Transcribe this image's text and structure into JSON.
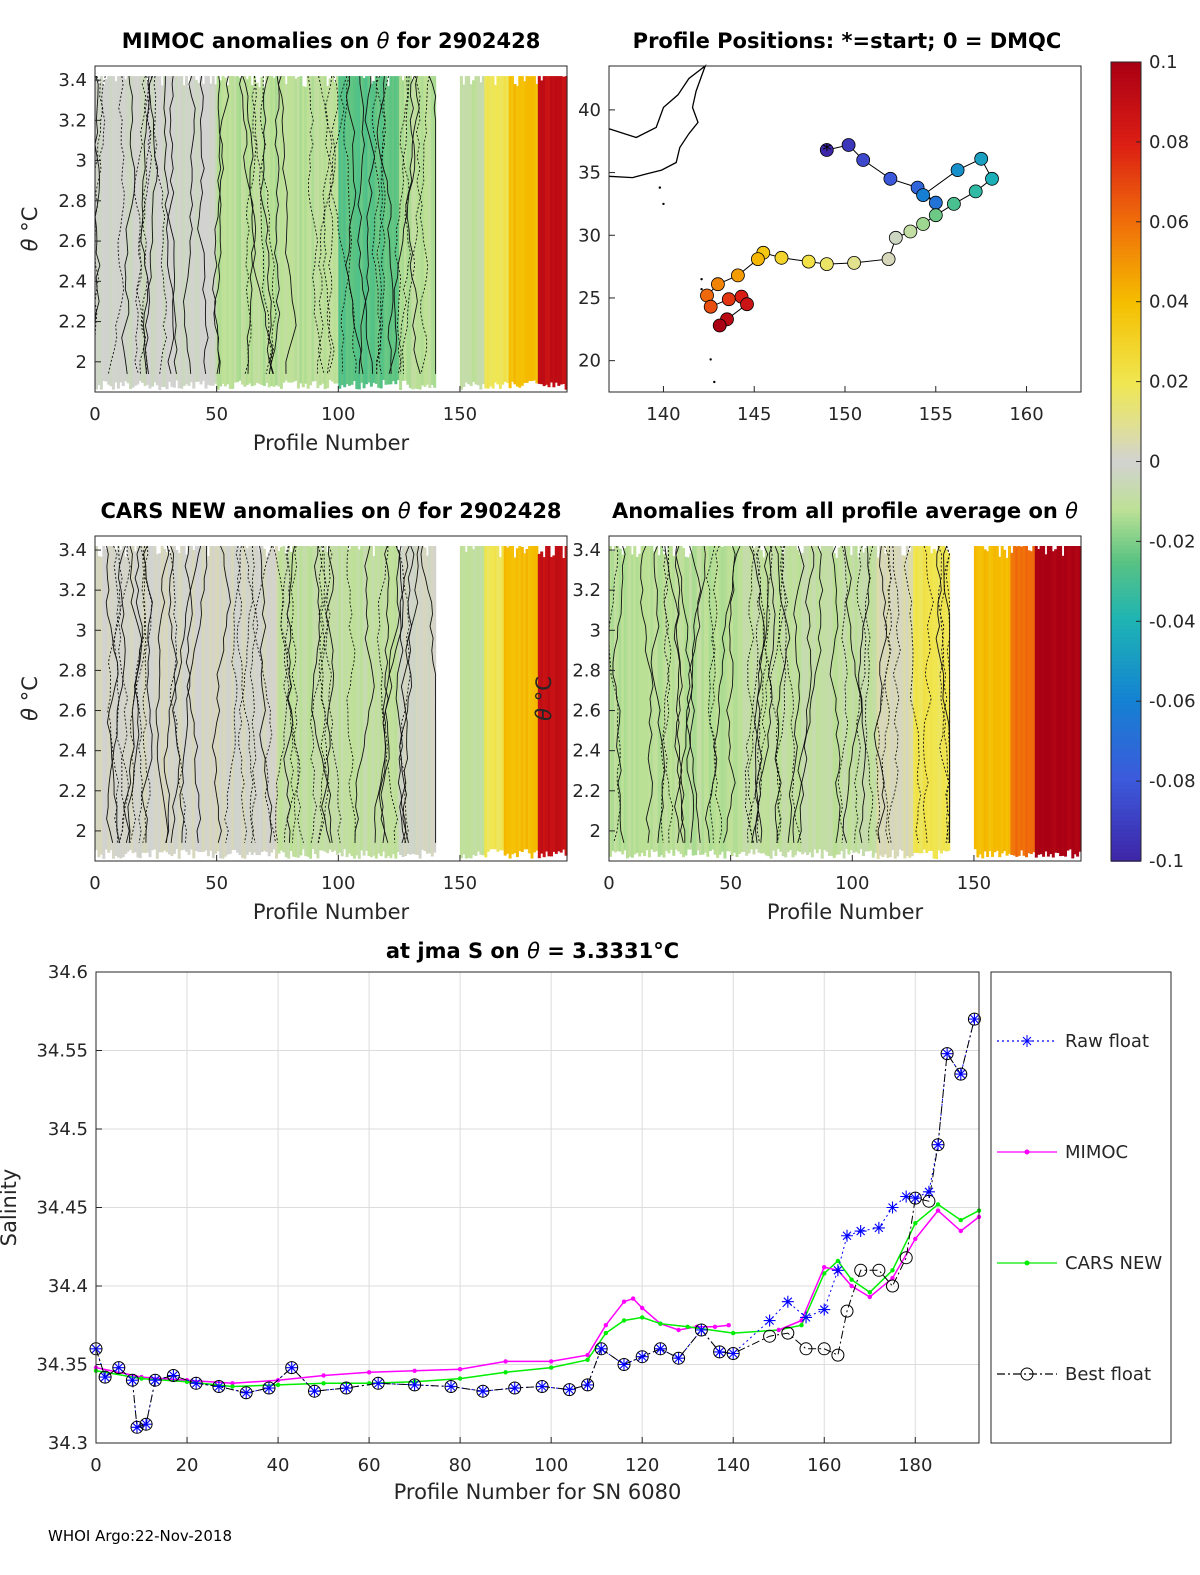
{
  "footer": "WHOI Argo:22-Nov-2018",
  "chart_data": [
    {
      "id": "mimoc",
      "type": "heatmap",
      "title_prefix": "MIMOC anomalies on",
      "title_symbol": "θ",
      "title_suffix": " for 2902428",
      "xlabel": "Profile Number",
      "ylabel_symbol": "θ",
      "ylabel_unit": "°C",
      "xlim": [
        0,
        194
      ],
      "ylim": [
        1.85,
        3.47
      ],
      "xticks": [
        "0",
        "50",
        "100",
        "150"
      ],
      "yticks": [
        "2",
        "2.2",
        "2.4",
        "2.6",
        "2.8",
        "3",
        "3.2",
        "3.4"
      ],
      "anomaly_by_profile_range": [
        {
          "from": 0,
          "to": 50,
          "anomaly": -0.002
        },
        {
          "from": 50,
          "to": 100,
          "anomaly": -0.012
        },
        {
          "from": 100,
          "to": 125,
          "anomaly": -0.025
        },
        {
          "from": 125,
          "to": 140,
          "anomaly": -0.012
        },
        {
          "from": 150,
          "to": 160,
          "anomaly": -0.01
        },
        {
          "from": 160,
          "to": 170,
          "anomaly": 0.02
        },
        {
          "from": 170,
          "to": 182,
          "anomaly": 0.04
        },
        {
          "from": 182,
          "to": 194,
          "anomaly": 0.09
        }
      ]
    },
    {
      "id": "map",
      "type": "scatter",
      "title": "Profile Positions: *=start; 0 = DMQC",
      "xlim": [
        137,
        163
      ],
      "ylim": [
        17.5,
        43.5
      ],
      "xticks": [
        "140",
        "145",
        "150",
        "155",
        "160"
      ],
      "yticks": [
        "20",
        "25",
        "30",
        "35",
        "40"
      ],
      "track_lon": [
        149.0,
        150.2,
        151.0,
        152.5,
        154.0,
        155.0,
        154.3,
        156.2,
        157.5,
        158.1,
        157.2,
        156.0,
        155.0,
        154.3,
        153.6,
        152.8,
        152.4,
        150.5,
        149.0,
        148.0,
        146.5,
        145.5,
        145.2,
        144.1,
        143.0,
        142.4,
        142.6,
        143.6,
        144.3,
        144.6,
        143.5,
        143.1
      ],
      "track_lat": [
        36.8,
        37.2,
        36.0,
        34.5,
        33.8,
        32.6,
        33.2,
        35.2,
        36.1,
        34.5,
        33.5,
        32.5,
        31.6,
        30.9,
        30.3,
        29.8,
        28.1,
        27.8,
        27.7,
        27.9,
        28.2,
        28.6,
        28.1,
        26.8,
        26.1,
        25.2,
        24.3,
        24.9,
        25.1,
        24.5,
        23.3,
        22.8
      ],
      "coast_name": "Japan coastline"
    },
    {
      "id": "cars",
      "type": "heatmap",
      "title_prefix": "CARS NEW anomalies on",
      "title_symbol": "θ",
      "title_suffix": " for 2902428",
      "xlabel": "Profile Number",
      "ylabel_symbol": "θ",
      "ylabel_unit": "°C",
      "xlim": [
        0,
        194
      ],
      "ylim": [
        1.85,
        3.47
      ],
      "xticks": [
        "0",
        "50",
        "100",
        "150"
      ],
      "yticks": [
        "2",
        "2.2",
        "2.4",
        "2.6",
        "2.8",
        "3",
        "3.2",
        "3.4"
      ],
      "anomaly_by_profile_range": [
        {
          "from": 0,
          "to": 75,
          "anomaly": 0.001
        },
        {
          "from": 75,
          "to": 125,
          "anomaly": -0.01
        },
        {
          "from": 125,
          "to": 140,
          "anomaly": 0.0
        },
        {
          "from": 150,
          "to": 160,
          "anomaly": -0.01
        },
        {
          "from": 160,
          "to": 168,
          "anomaly": 0.02
        },
        {
          "from": 168,
          "to": 182,
          "anomaly": 0.04
        },
        {
          "from": 182,
          "to": 194,
          "anomaly": 0.09
        }
      ]
    },
    {
      "id": "allavg",
      "type": "heatmap",
      "title_prefix": "Anomalies from all profile average on",
      "title_symbol": "θ",
      "title_suffix": "",
      "xlabel": "Profile Number",
      "ylabel_symbol": "θ",
      "ylabel_unit": "°C",
      "xlim": [
        0,
        194
      ],
      "ylim": [
        1.85,
        3.47
      ],
      "xticks": [
        "0",
        "50",
        "100",
        "150"
      ],
      "yticks": [
        "2",
        "2.2",
        "2.4",
        "2.6",
        "2.8",
        "3",
        "3.2",
        "3.4"
      ],
      "anomaly_by_profile_range": [
        {
          "from": 0,
          "to": 55,
          "anomaly": -0.012
        },
        {
          "from": 55,
          "to": 110,
          "anomaly": -0.01
        },
        {
          "from": 110,
          "to": 125,
          "anomaly": 0.005
        },
        {
          "from": 125,
          "to": 140,
          "anomaly": 0.02
        },
        {
          "from": 150,
          "to": 165,
          "anomaly": 0.04
        },
        {
          "from": 165,
          "to": 175,
          "anomaly": 0.06
        },
        {
          "from": 175,
          "to": 194,
          "anomaly": 0.1
        }
      ]
    },
    {
      "id": "colorbar",
      "type": "colorbar",
      "range": [
        -0.1,
        0.1
      ],
      "ticks": [
        "0.1",
        "0.08",
        "0.06",
        "0.04",
        "0.02",
        "0",
        "-0.02",
        "-0.04",
        "-0.06",
        "-0.08",
        "-0.1"
      ]
    },
    {
      "id": "salinity",
      "type": "line",
      "title_prefix": "at jma S on ",
      "title_symbol": "θ",
      "title_suffix": " = 3.3331",
      "title_unit": "°C",
      "xlabel": "Profile Number for SN 6080",
      "ylabel": "Salinity",
      "xlim": [
        0,
        194
      ],
      "ylim": [
        34.3,
        34.6
      ],
      "xticks": [
        "0",
        "20",
        "40",
        "60",
        "80",
        "100",
        "120",
        "140",
        "160",
        "180"
      ],
      "yticks": [
        "34.3",
        "34.35",
        "34.4",
        "34.45",
        "34.5",
        "34.55",
        "34.6"
      ],
      "legend": [
        "Raw float",
        "MIMOC",
        "CARS NEW",
        "Best float"
      ],
      "series": [
        {
          "name": "MIMOC",
          "color": "#ff00ff",
          "x": [
            0,
            10,
            20,
            30,
            40,
            50,
            60,
            70,
            80,
            90,
            100,
            108,
            112,
            116,
            118,
            120,
            124,
            128,
            132,
            136,
            139
          ],
          "y": [
            34.348,
            34.342,
            34.34,
            34.338,
            34.34,
            34.343,
            34.345,
            34.346,
            34.347,
            34.352,
            34.352,
            34.356,
            34.375,
            34.39,
            34.392,
            34.386,
            34.376,
            34.372,
            34.374,
            34.374,
            34.375
          ]
        },
        {
          "name": "CARS NEW",
          "color": "#00ee00",
          "x": [
            0,
            10,
            20,
            30,
            40,
            50,
            60,
            70,
            80,
            90,
            100,
            108,
            112,
            116,
            120,
            124,
            130,
            140,
            150,
            155,
            160,
            163,
            166,
            170,
            175,
            180,
            185,
            190,
            194
          ],
          "y": [
            34.346,
            34.341,
            34.339,
            34.336,
            34.337,
            34.338,
            34.338,
            34.339,
            34.341,
            34.345,
            34.348,
            34.353,
            34.37,
            34.378,
            34.38,
            34.376,
            34.374,
            34.37,
            34.372,
            34.375,
            34.408,
            34.416,
            34.404,
            34.396,
            34.41,
            34.44,
            34.452,
            34.442,
            34.448
          ]
        },
        {
          "name": "MIMOC",
          "color": "#ff00ff",
          "x": [
            150,
            155,
            160,
            163,
            166,
            170,
            175,
            180,
            185,
            190,
            194
          ],
          "y": [
            34.372,
            34.378,
            34.412,
            34.41,
            34.4,
            34.393,
            34.405,
            34.43,
            34.448,
            34.435,
            34.444
          ]
        },
        {
          "name": "Raw float",
          "color": "#0000ff",
          "x": [
            0,
            2,
            5,
            8,
            9,
            11,
            13,
            17,
            22,
            27,
            33,
            38,
            43,
            48,
            55,
            62,
            70,
            78,
            85,
            92,
            98,
            104,
            108,
            111,
            116,
            120,
            124,
            128,
            133,
            137,
            140,
            148,
            152,
            156,
            160,
            163,
            165,
            168,
            172,
            175,
            178,
            180,
            183,
            185,
            187,
            190,
            193
          ],
          "y": [
            34.36,
            34.342,
            34.348,
            34.34,
            34.31,
            34.312,
            34.34,
            34.343,
            34.338,
            34.336,
            34.332,
            34.335,
            34.348,
            34.333,
            34.335,
            34.338,
            34.337,
            34.336,
            34.333,
            34.335,
            34.336,
            34.334,
            34.337,
            34.36,
            34.35,
            34.355,
            34.36,
            34.354,
            34.372,
            34.358,
            34.357,
            34.378,
            34.39,
            34.38,
            34.385,
            34.41,
            34.432,
            34.435,
            34.437,
            34.45,
            34.457,
            34.456,
            34.46,
            34.49,
            34.548,
            34.535,
            34.57
          ]
        },
        {
          "name": "Best float",
          "color": "#000000",
          "x": [
            0,
            2,
            5,
            8,
            9,
            11,
            13,
            17,
            22,
            27,
            33,
            38,
            43,
            48,
            55,
            62,
            70,
            78,
            85,
            92,
            98,
            104,
            108,
            111,
            116,
            120,
            124,
            128,
            133,
            137,
            140,
            148,
            152,
            156,
            160,
            163,
            165,
            168,
            172,
            175,
            178,
            180,
            183,
            185,
            187,
            190,
            193
          ],
          "y": [
            34.36,
            34.342,
            34.348,
            34.34,
            34.31,
            34.312,
            34.34,
            34.343,
            34.338,
            34.336,
            34.332,
            34.335,
            34.348,
            34.333,
            34.335,
            34.338,
            34.337,
            34.336,
            34.333,
            34.335,
            34.336,
            34.334,
            34.337,
            34.36,
            34.35,
            34.355,
            34.36,
            34.354,
            34.372,
            34.358,
            34.357,
            34.368,
            34.37,
            34.36,
            34.36,
            34.356,
            34.384,
            34.41,
            34.41,
            34.4,
            34.418,
            34.456,
            34.454,
            34.49,
            34.548,
            34.535,
            34.57
          ]
        }
      ]
    }
  ]
}
